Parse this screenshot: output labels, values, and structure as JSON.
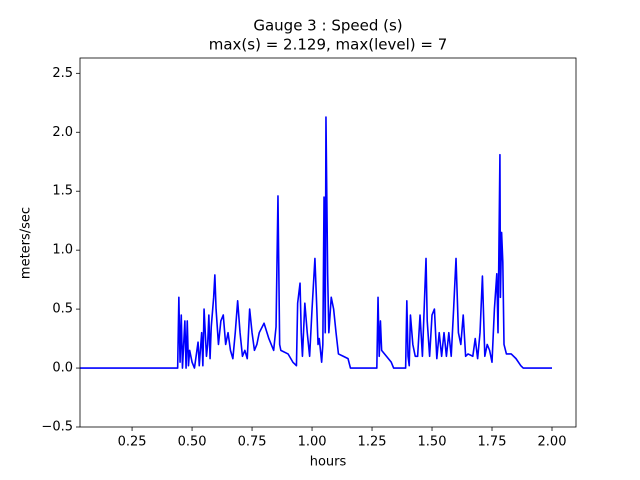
{
  "chart_data": {
    "type": "line",
    "title": [
      "Gauge 3 : Speed (s)",
      "max(s) =   2.129,    max(level) = 7"
    ],
    "x_label": "hours",
    "y_label": "meters/sec",
    "xlim": [
      0.033,
      2.1
    ],
    "ylim": [
      -0.5,
      2.63
    ],
    "xticks": [
      {
        "value": 0.25,
        "label": "0.25"
      },
      {
        "value": 0.5,
        "label": "0.50"
      },
      {
        "value": 0.75,
        "label": "0.75"
      },
      {
        "value": 1.0,
        "label": "1.00"
      },
      {
        "value": 1.25,
        "label": "1.25"
      },
      {
        "value": 1.5,
        "label": "1.50"
      },
      {
        "value": 1.75,
        "label": "1.75"
      },
      {
        "value": 2.0,
        "label": "2.00"
      }
    ],
    "yticks": [
      {
        "value": -0.5,
        "label": "−0.5"
      },
      {
        "value": 0.0,
        "label": "0.0"
      },
      {
        "value": 0.5,
        "label": "0.5"
      },
      {
        "value": 1.0,
        "label": "1.0"
      },
      {
        "value": 1.5,
        "label": "1.5"
      },
      {
        "value": 2.0,
        "label": "2.0"
      },
      {
        "value": 2.5,
        "label": "2.5"
      }
    ],
    "grid": false,
    "series": [
      {
        "color": "#0000ff",
        "x": [
          0.033,
          0.44,
          0.445,
          0.45,
          0.455,
          0.46,
          0.47,
          0.475,
          0.48,
          0.485,
          0.49,
          0.5,
          0.51,
          0.525,
          0.53,
          0.54,
          0.545,
          0.55,
          0.56,
          0.565,
          0.57,
          0.575,
          0.58,
          0.59,
          0.595,
          0.6,
          0.61,
          0.62,
          0.63,
          0.64,
          0.65,
          0.66,
          0.67,
          0.68,
          0.69,
          0.7,
          0.71,
          0.72,
          0.73,
          0.74,
          0.75,
          0.76,
          0.77,
          0.78,
          0.8,
          0.82,
          0.84,
          0.85,
          0.858,
          0.865,
          0.87,
          0.9,
          0.92,
          0.935,
          0.94,
          0.95,
          0.955,
          0.96,
          0.97,
          0.98,
          0.99,
          1.0,
          1.012,
          1.02,
          1.025,
          1.03,
          1.04,
          1.045,
          1.05,
          1.055,
          1.058,
          1.065,
          1.07,
          1.08,
          1.09,
          1.1,
          1.11,
          1.13,
          1.15,
          1.16,
          1.27,
          1.275,
          1.28,
          1.285,
          1.29,
          1.31,
          1.33,
          1.34,
          1.39,
          1.395,
          1.4,
          1.405,
          1.41,
          1.42,
          1.43,
          1.44,
          1.45,
          1.46,
          1.475,
          1.48,
          1.49,
          1.5,
          1.51,
          1.52,
          1.53,
          1.54,
          1.55,
          1.56,
          1.57,
          1.58,
          1.59,
          1.6,
          1.61,
          1.62,
          1.63,
          1.64,
          1.65,
          1.67,
          1.68,
          1.69,
          1.7,
          1.71,
          1.72,
          1.73,
          1.74,
          1.75,
          1.76,
          1.77,
          1.775,
          1.783,
          1.785,
          1.79,
          1.795,
          1.8,
          1.81,
          1.83,
          1.85,
          1.87,
          1.88,
          2.0
        ],
        "values": [
          0,
          0,
          0.6,
          0.05,
          0.45,
          0,
          0.4,
          0,
          0.4,
          0.02,
          0.15,
          0.05,
          0,
          0.22,
          0.02,
          0.3,
          0.02,
          0.5,
          0.1,
          0.2,
          0.45,
          0.08,
          0.35,
          0.6,
          0.79,
          0.5,
          0.2,
          0.4,
          0.45,
          0.2,
          0.3,
          0.15,
          0.08,
          0.3,
          0.57,
          0.3,
          0.1,
          0.15,
          0.08,
          0.5,
          0.3,
          0.15,
          0.2,
          0.3,
          0.38,
          0.25,
          0.15,
          0.35,
          1.46,
          0.2,
          0.15,
          0.12,
          0.05,
          0.02,
          0.55,
          0.72,
          0.3,
          0.1,
          0.55,
          0.3,
          0.1,
          0.5,
          0.93,
          0.5,
          0.2,
          0.25,
          0.05,
          0.2,
          1.45,
          0.3,
          2.129,
          0.8,
          0.3,
          0.6,
          0.5,
          0.3,
          0.12,
          0.1,
          0.08,
          0,
          0,
          0.6,
          0.1,
          0.4,
          0.15,
          0.1,
          0.05,
          0,
          0,
          0.57,
          0.1,
          0.02,
          0.45,
          0.2,
          0.1,
          0.1,
          0.45,
          0.1,
          0.93,
          0.4,
          0.1,
          0.45,
          0.5,
          0.08,
          0.3,
          0.1,
          0.3,
          0.1,
          0.3,
          0.1,
          0.5,
          0.93,
          0.3,
          0.2,
          0.45,
          0.1,
          0.12,
          0.1,
          0.25,
          0.08,
          0.3,
          0.78,
          0.1,
          0.2,
          0.15,
          0.05,
          0.5,
          0.8,
          0.3,
          1.81,
          0.6,
          1.15,
          0.9,
          0.2,
          0.12,
          0.12,
          0.08,
          0.02,
          0,
          0
        ]
      }
    ]
  }
}
